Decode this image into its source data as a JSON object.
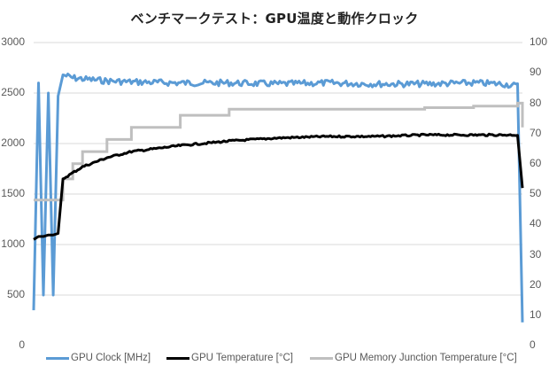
{
  "chart_data": {
    "type": "line",
    "title": "ベンチマークテスト：GPU温度と動作クロック",
    "xlabel": "",
    "ylabel_left": "",
    "ylabel_right": "",
    "y_left": {
      "min": 0,
      "max": 3000,
      "ticks": [
        "0",
        "500",
        "1000",
        "1500",
        "2000",
        "2500",
        "3000"
      ]
    },
    "y_right": {
      "min": 0,
      "max": 100,
      "ticks": [
        "0",
        "10",
        "20",
        "30",
        "40",
        "50",
        "60",
        "70",
        "80",
        "90",
        "100"
      ]
    },
    "grid": true,
    "legend_position": "bottom",
    "x": [
      0,
      1,
      2,
      3,
      4,
      5,
      6,
      8,
      10,
      15,
      20,
      30,
      40,
      50,
      60,
      70,
      80,
      90,
      96,
      99,
      100
    ],
    "series": [
      {
        "name": "GPU Clock [MHz]",
        "axis": "left",
        "color": "#5b9bd5",
        "values": [
          350,
          2600,
          500,
          2500,
          500,
          2470,
          2680,
          2650,
          2640,
          2620,
          2610,
          2600,
          2600,
          2590,
          2600,
          2590,
          2590,
          2600,
          2590,
          2570,
          230
        ]
      },
      {
        "name": "GPU Temperature [°C]",
        "axis": "right",
        "color": "#000000",
        "values": [
          35,
          36,
          36,
          36.5,
          36.5,
          37,
          55,
          57,
          59,
          62,
          64,
          66,
          67.5,
          68.5,
          69,
          69,
          69.5,
          69.5,
          69.5,
          69.5,
          52
        ]
      },
      {
        "name": "GPU Memory Junction Temperature [°C]",
        "axis": "right",
        "color": "#bfbfbf",
        "values": [
          48,
          48,
          48,
          48,
          48,
          48,
          55,
          60,
          64,
          68,
          72,
          76,
          78,
          78,
          78,
          78,
          78.5,
          79,
          79,
          80,
          72
        ]
      }
    ]
  },
  "title": "ベンチマークテスト：GPU温度と動作クロック",
  "axes": {
    "left": [
      "3000",
      "2500",
      "2000",
      "1500",
      "1000",
      "500",
      "0"
    ],
    "right": [
      "100",
      "90",
      "80",
      "70",
      "60",
      "50",
      "40",
      "30",
      "20",
      "10",
      "0"
    ]
  },
  "legend": [
    {
      "label": "GPU Clock [MHz]",
      "color": "#5b9bd5"
    },
    {
      "label": "GPU Temperature [°C]",
      "color": "#000000"
    },
    {
      "label": "GPU Memory Junction Temperature [°C]",
      "color": "#bfbfbf"
    }
  ]
}
